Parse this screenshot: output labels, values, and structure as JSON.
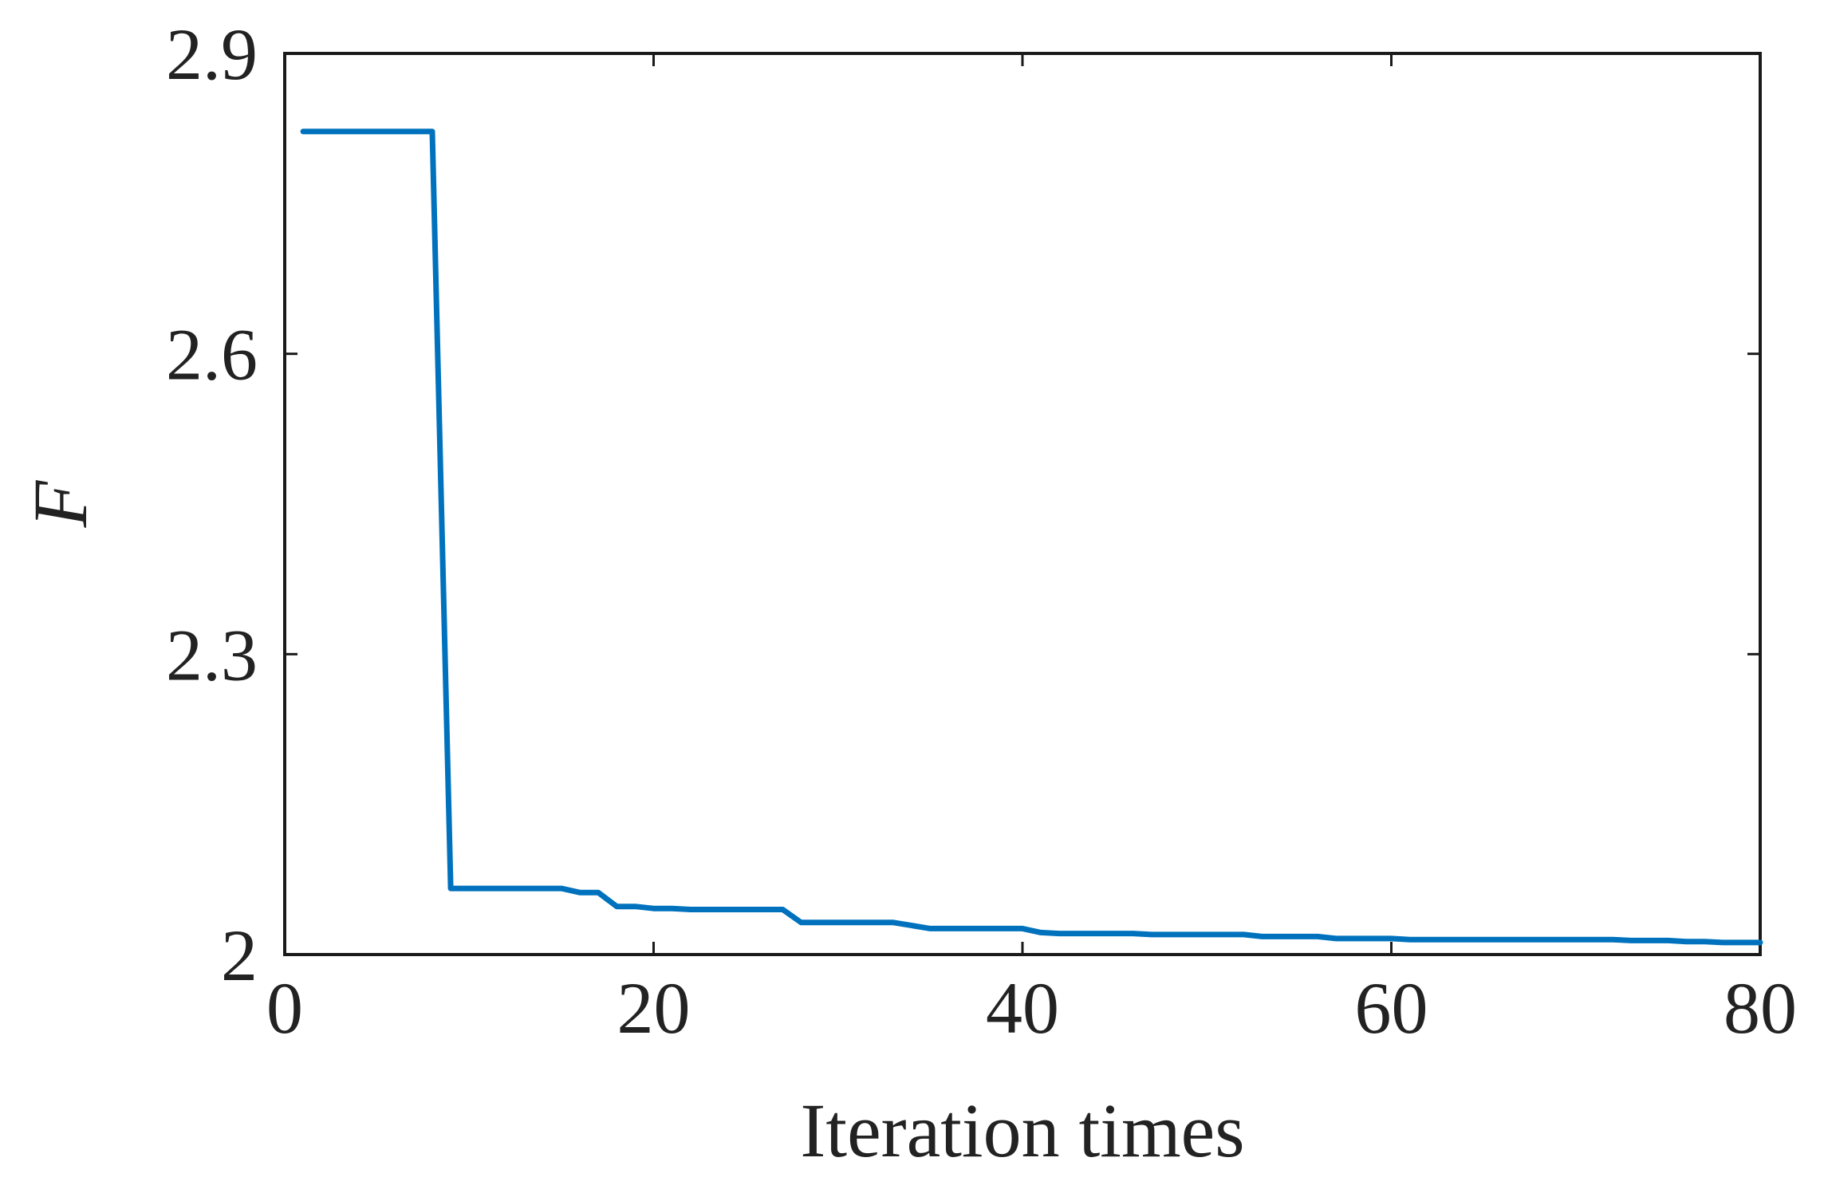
{
  "chart_data": {
    "type": "line",
    "title": "",
    "xlabel": "Iteration times",
    "ylabel": "F",
    "xlim": [
      0,
      80
    ],
    "ylim": [
      2.0,
      2.9
    ],
    "x_ticks": [
      "0",
      "20",
      "40",
      "60",
      "80"
    ],
    "y_ticks": [
      "2",
      "2.3",
      "2.6",
      "2.9"
    ],
    "x_tick_values": [
      0,
      20,
      40,
      60,
      80
    ],
    "y_tick_values": [
      2.0,
      2.3,
      2.6,
      2.9
    ],
    "grid": false,
    "colors": {
      "series": "#0072BD",
      "axis": "#1a1a1a"
    },
    "series": [
      {
        "x": [
          1,
          2,
          3,
          4,
          5,
          6,
          7,
          8,
          9,
          10,
          11,
          12,
          13,
          14,
          15,
          16,
          17,
          18,
          19,
          20,
          21,
          22,
          23,
          24,
          25,
          26,
          27,
          28,
          29,
          30,
          31,
          32,
          33,
          34,
          35,
          36,
          37,
          38,
          39,
          40,
          41,
          42,
          43,
          44,
          45,
          46,
          47,
          48,
          49,
          50,
          51,
          52,
          53,
          54,
          55,
          56,
          57,
          58,
          59,
          60,
          61,
          62,
          63,
          64,
          65,
          66,
          67,
          68,
          69,
          70,
          71,
          72,
          73,
          74,
          75,
          76,
          77,
          78,
          79,
          80
        ],
        "values": [
          2.822,
          2.822,
          2.822,
          2.822,
          2.822,
          2.822,
          2.822,
          2.822,
          2.066,
          2.066,
          2.066,
          2.066,
          2.066,
          2.066,
          2.066,
          2.062,
          2.062,
          2.048,
          2.048,
          2.046,
          2.046,
          2.045,
          2.045,
          2.045,
          2.045,
          2.045,
          2.045,
          2.032,
          2.032,
          2.032,
          2.032,
          2.032,
          2.032,
          2.029,
          2.026,
          2.026,
          2.026,
          2.026,
          2.026,
          2.026,
          2.022,
          2.021,
          2.021,
          2.021,
          2.021,
          2.021,
          2.02,
          2.02,
          2.02,
          2.02,
          2.02,
          2.02,
          2.018,
          2.018,
          2.018,
          2.018,
          2.016,
          2.016,
          2.016,
          2.016,
          2.015,
          2.015,
          2.015,
          2.015,
          2.015,
          2.015,
          2.015,
          2.015,
          2.015,
          2.015,
          2.015,
          2.015,
          2.014,
          2.014,
          2.014,
          2.013,
          2.013,
          2.012,
          2.012,
          2.012
        ]
      }
    ]
  }
}
